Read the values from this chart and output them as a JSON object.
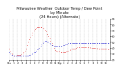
{
  "title": "Milwaukee Weather  Outdoor Temp / Dew Point\nby Minute\n(24 Hours) (Alternate)",
  "bg_color": "#ffffff",
  "grid_color": "#888888",
  "temp_color": "#dd0000",
  "dew_color": "#0000cc",
  "ylim": [
    20,
    90
  ],
  "xlim": [
    0,
    1439
  ],
  "yticks": [
    20,
    30,
    40,
    50,
    60,
    70,
    80,
    90
  ],
  "temp_data": [
    38,
    37,
    36,
    35,
    34,
    33,
    33,
    32,
    31,
    30,
    30,
    29,
    29,
    28,
    28,
    27,
    27,
    27,
    27,
    27,
    27,
    27,
    27,
    27,
    27,
    27,
    28,
    28,
    28,
    28,
    28,
    28,
    28,
    28,
    28,
    28,
    28,
    28,
    28,
    28,
    28,
    28,
    28,
    28,
    29,
    29,
    29,
    29,
    30,
    30,
    31,
    31,
    32,
    32,
    33,
    34,
    35,
    36,
    37,
    38,
    39,
    40,
    42,
    43,
    44,
    45,
    47,
    48,
    50,
    51,
    52,
    53,
    55,
    56,
    57,
    58,
    59,
    60,
    61,
    62,
    62,
    63,
    64,
    65,
    66,
    67,
    68,
    69,
    70,
    71,
    71,
    72,
    72,
    73,
    73,
    74,
    74,
    75,
    75,
    75,
    75,
    75,
    76,
    76,
    76,
    76,
    76,
    76,
    76,
    76,
    76,
    76,
    76,
    76,
    76,
    75,
    75,
    75,
    75,
    74,
    74,
    74,
    73,
    73,
    73,
    72,
    72,
    71,
    71,
    70,
    70,
    69,
    68,
    67,
    66,
    65,
    64,
    63,
    62,
    61,
    60,
    59,
    58,
    57,
    56,
    55,
    54,
    53,
    52,
    51,
    50,
    49,
    48,
    47,
    46,
    45,
    44,
    43,
    42,
    41,
    40,
    39,
    38,
    37,
    36,
    36,
    35,
    35,
    35,
    34,
    34,
    34,
    34,
    34,
    34,
    34,
    34,
    34,
    34,
    34,
    34,
    34,
    34,
    33,
    33,
    33,
    33,
    33,
    33,
    33,
    33,
    33,
    33,
    33,
    33,
    33,
    33,
    33,
    33,
    33,
    33,
    33,
    33,
    33,
    34,
    34,
    34,
    34,
    34,
    34,
    34,
    35,
    35,
    35,
    35,
    35,
    36,
    36,
    36,
    36,
    37,
    37,
    37,
    38,
    38,
    38,
    38,
    38,
    38,
    38,
    38,
    38,
    39,
    39,
    39,
    39,
    39,
    39,
    39,
    40,
    40,
    40,
    40,
    41,
    41,
    41,
    41,
    41,
    41,
    41,
    41,
    41,
    41,
    41,
    41,
    41,
    41,
    41,
    41,
    41,
    41,
    41,
    41,
    41,
    41,
    41,
    41,
    41,
    41,
    41,
    41,
    41,
    41,
    41,
    41,
    41,
    41,
    41,
    41,
    41,
    41,
    41,
    41,
    41,
    41,
    41,
    41,
    41,
    41,
    41,
    41,
    41,
    40,
    40,
    40,
    40,
    40,
    40,
    40,
    40,
    40,
    40,
    40,
    40,
    40,
    40,
    40,
    40,
    40,
    40,
    40,
    40,
    40,
    40,
    39,
    39,
    39,
    39,
    39,
    39,
    39,
    39,
    39,
    39,
    39,
    39,
    39,
    39,
    39,
    39,
    39,
    39,
    39,
    39,
    39,
    39,
    39,
    39,
    38,
    38,
    38,
    38,
    38,
    38,
    38,
    38,
    38,
    38,
    38,
    38,
    38,
    37,
    37,
    37,
    37,
    37,
    37,
    37,
    37,
    37
  ],
  "dew_data": [
    32,
    32,
    31,
    31,
    30,
    30,
    29,
    29,
    28,
    28,
    28,
    28,
    28,
    27,
    27,
    27,
    27,
    27,
    27,
    27,
    27,
    27,
    27,
    27,
    27,
    27,
    27,
    27,
    27,
    27,
    27,
    27,
    27,
    27,
    27,
    27,
    27,
    27,
    27,
    27,
    27,
    27,
    27,
    27,
    27,
    27,
    27,
    27,
    27,
    27,
    27,
    27,
    27,
    27,
    27,
    27,
    27,
    27,
    27,
    27,
    27,
    27,
    27,
    27,
    27,
    27,
    27,
    27,
    27,
    27,
    27,
    27,
    28,
    28,
    28,
    28,
    28,
    28,
    28,
    28,
    29,
    29,
    30,
    30,
    31,
    31,
    31,
    32,
    32,
    32,
    33,
    33,
    33,
    34,
    34,
    35,
    35,
    35,
    36,
    36,
    37,
    37,
    37,
    38,
    38,
    39,
    39,
    40,
    40,
    41,
    41,
    42,
    43,
    44,
    44,
    45,
    46,
    47,
    47,
    48,
    48,
    49,
    49,
    50,
    50,
    51,
    51,
    51,
    52,
    52,
    52,
    52,
    52,
    52,
    51,
    51,
    51,
    50,
    50,
    50,
    50,
    49,
    49,
    49,
    48,
    48,
    47,
    47,
    47,
    46,
    46,
    46,
    45,
    45,
    45,
    45,
    45,
    44,
    44,
    44,
    43,
    43,
    43,
    43,
    43,
    43,
    43,
    43,
    43,
    43,
    43,
    43,
    43,
    43,
    43,
    43,
    43,
    43,
    43,
    43,
    43,
    43,
    43,
    43,
    43,
    43,
    43,
    43,
    43,
    43,
    43,
    44,
    44,
    44,
    44,
    45,
    45,
    45,
    45,
    46,
    46,
    46,
    46,
    46,
    47,
    47,
    47,
    47,
    47,
    47,
    47,
    47,
    48,
    48,
    48,
    48,
    48,
    48,
    48,
    48,
    48,
    48,
    48,
    48,
    48,
    48,
    48,
    48,
    48,
    48,
    48,
    48,
    48,
    48,
    48,
    48,
    48,
    48,
    48,
    48,
    48,
    48,
    48,
    48,
    48,
    48,
    48,
    48,
    48,
    48,
    48,
    48,
    48,
    48,
    48,
    48,
    48,
    48,
    48,
    48,
    48,
    48,
    48,
    48,
    48,
    48,
    48,
    48,
    48,
    48,
    48,
    48,
    48,
    48,
    48,
    48,
    48,
    48,
    48,
    48,
    48,
    48,
    48,
    48,
    48,
    48,
    48,
    48,
    48,
    48,
    48,
    48,
    48,
    48,
    48,
    48,
    48,
    48,
    48,
    48,
    48,
    48,
    48,
    48,
    48,
    48,
    48,
    48,
    48,
    48,
    48,
    48,
    48,
    48,
    48,
    48,
    48,
    48,
    48,
    48,
    48,
    48,
    48,
    48,
    48,
    48,
    48,
    48,
    48,
    48,
    48,
    48,
    48,
    48,
    48,
    48,
    48,
    48,
    48,
    48,
    48,
    48,
    48,
    48,
    48,
    48,
    48,
    48,
    48,
    48,
    48,
    48,
    48,
    48,
    48,
    48,
    48,
    48,
    48,
    48
  ],
  "xtick_positions": [
    0,
    60,
    120,
    180,
    240,
    300,
    360,
    420,
    480,
    540,
    600,
    660,
    720,
    780,
    840,
    900,
    960,
    1020,
    1080,
    1140,
    1200,
    1260,
    1320,
    1380
  ],
  "xtick_labels": [
    "12a",
    "1",
    "2",
    "3",
    "4",
    "5",
    "6",
    "7",
    "8",
    "9",
    "10",
    "11",
    "12p",
    "1",
    "2",
    "3",
    "4",
    "5",
    "6",
    "7",
    "8",
    "9",
    "10",
    "11"
  ],
  "title_fontsize": 3.8,
  "tick_fontsize": 2.5,
  "markersize": 1.0,
  "subsample": 4
}
